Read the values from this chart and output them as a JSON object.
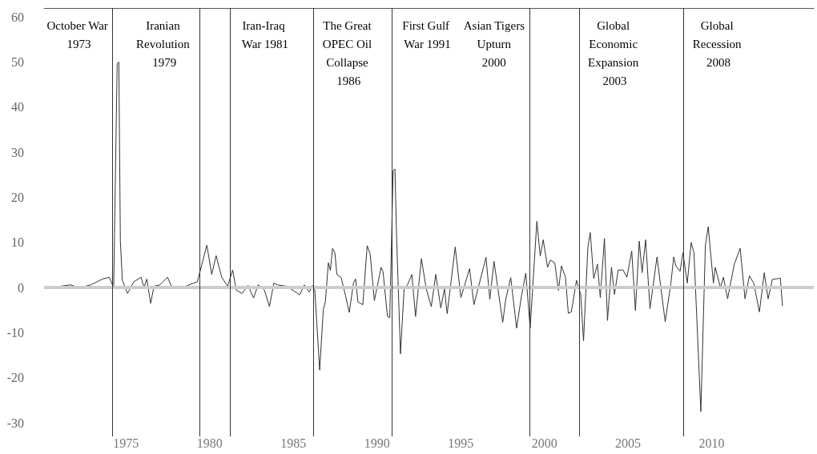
{
  "chart_data": {
    "type": "line",
    "x": [
      1970.46,
      1971.67,
      1972.2,
      1972.9,
      1973.6,
      1974.0,
      1974.26,
      1974.47,
      1974.57,
      1974.66,
      1974.78,
      1975.09,
      1975.47,
      1975.9,
      1976.07,
      1976.24,
      1976.47,
      1976.67,
      1977.02,
      1977.48,
      1977.71,
      1978.57,
      1979.26,
      1979.83,
      1980.12,
      1980.38,
      1980.72,
      1981.07,
      1981.37,
      1981.59,
      1981.94,
      1982.29,
      1982.62,
      1982.89,
      1983.14,
      1983.27,
      1983.57,
      1983.83,
      1984.05,
      1984.61,
      1985.38,
      1985.65,
      1985.95,
      1986.16,
      1986.28,
      1986.57,
      1986.79,
      1986.91,
      1987.09,
      1987.21,
      1987.34,
      1987.48,
      1987.6,
      1987.86,
      1988.12,
      1988.34,
      1988.59,
      1988.72,
      1988.86,
      1989.15,
      1989.41,
      1989.59,
      1989.84,
      1990.24,
      1990.36,
      1990.62,
      1990.76,
      1990.96,
      1991.07,
      1991.17,
      1991.4,
      1991.62,
      1991.82,
      1992.08,
      1992.3,
      1992.65,
      1992.94,
      1993.24,
      1993.51,
      1993.81,
      1994.03,
      1994.19,
      1994.67,
      1995.01,
      1995.53,
      1995.79,
      1996.51,
      1996.74,
      1996.99,
      1997.51,
      1997.69,
      1997.99,
      1998.34,
      1998.63,
      1998.89,
      1999.15,
      1999.55,
      1999.75,
      1999.93,
      2000.19,
      2000.36,
      2000.62,
      2000.84,
      2001.02,
      2001.26,
      2001.43,
      2001.61,
      2001.92,
      2002.17,
      2002.34,
      2002.6,
      2002.74,
      2002.95,
      2003.17,
      2003.34,
      2003.59,
      2003.77,
      2004.01,
      2004.19,
      2004.41,
      2004.7,
      2004.93,
      2005.22,
      2005.44,
      2005.67,
      2005.84,
      2006.05,
      2006.31,
      2006.73,
      2007.22,
      2007.56,
      2007.73,
      2007.86,
      2008.11,
      2008.28,
      2008.54,
      2008.77,
      2008.94,
      2009.35,
      2009.62,
      2009.79,
      2010.1,
      2010.21,
      2010.52,
      2010.7,
      2010.95,
      2011.13,
      2011.35,
      2011.7,
      2011.99,
      2012.25,
      2012.51,
      2012.85,
      2013.14,
      2013.37,
      2013.62,
      2013.97,
      2014.1,
      2014.23
    ],
    "series": [
      {
        "color": "#333333",
        "values": [
          0,
          0.6,
          0,
          0.6,
          1.9,
          2.3,
          0,
          49.7,
          50.0,
          10.3,
          1.6,
          -1.3,
          1.3,
          2.3,
          0,
          1.9,
          -3.5,
          0.3,
          0.6,
          2.3,
          0.3,
          0.3,
          1.3,
          9.4,
          2.9,
          7.1,
          2.3,
          0.3,
          3.9,
          -0.6,
          -1.3,
          0.5,
          -2.3,
          0.6,
          0,
          -0.6,
          -4.2,
          1.0,
          0.6,
          0.3,
          -1.6,
          0.6,
          -1.0,
          0.5,
          -0.6,
          -18.3,
          -4.8,
          -3.2,
          5.5,
          3.8,
          8.7,
          7.7,
          2.9,
          2.2,
          -1.9,
          -5.5,
          1.0,
          1.9,
          -3.2,
          -3.8,
          9.3,
          7.4,
          -2.9,
          4.5,
          3.5,
          -6.4,
          -6.7,
          25.9,
          26.3,
          10.9,
          -14.7,
          0,
          0.6,
          2.9,
          -6.4,
          6.4,
          -0.3,
          -4.2,
          2.9,
          -4.5,
          -0.3,
          -5.8,
          9.0,
          -2.2,
          4.2,
          -3.8,
          6.7,
          -2.6,
          5.8,
          -7.7,
          -2.6,
          2.2,
          -9.0,
          -1.9,
          3.2,
          -9.0,
          14.7,
          7.0,
          10.6,
          4.5,
          6.1,
          5.5,
          -0.6,
          4.8,
          2.3,
          -5.7,
          -5.4,
          1.6,
          -1.5,
          -11.8,
          9.0,
          12.2,
          2.0,
          5.2,
          -2.2,
          10.9,
          -7.3,
          4.5,
          -1.5,
          3.9,
          3.9,
          2.3,
          8.1,
          -5.1,
          10.3,
          3.3,
          10.6,
          -4.7,
          6.8,
          -7.6,
          1.0,
          6.8,
          4.8,
          3.6,
          7.7,
          1.0,
          10.0,
          7.7,
          -27.5,
          9.3,
          13.5,
          1.0,
          4.5,
          0,
          2.3,
          -2.5,
          1.0,
          5.2,
          8.7,
          -2.5,
          2.6,
          1.0,
          -5.4,
          3.3,
          -2.5,
          1.8,
          2.0,
          2.1,
          -4.1
        ]
      }
    ],
    "xlim": [
      1970.1,
      2016.1
    ],
    "xticks": [
      1975,
      1980,
      1985,
      1990,
      1995,
      2000,
      2005,
      2010
    ],
    "ylim": [
      -33,
      62
    ],
    "yticks": [
      -30,
      -20,
      -10,
      0,
      10,
      20,
      30,
      40,
      50,
      60
    ],
    "grid": false,
    "marker": "none",
    "line_style": "solid",
    "ref_lines": [
      {
        "axis": "y",
        "value": 0,
        "color": "#cccccc"
      },
      {
        "axis": "x",
        "value": 1974.2,
        "label": "October War 1973",
        "color": "#333333"
      },
      {
        "axis": "x",
        "value": 1979.4,
        "label": "Iranian Revolution 1979",
        "color": "#333333"
      },
      {
        "axis": "x",
        "value": 1981.2,
        "label": "Iran-Iraq War 1981",
        "color": "#333333"
      },
      {
        "axis": "x",
        "value": 1986.2,
        "label": "The Great OPEC Oil Collapse 1986",
        "color": "#333333"
      },
      {
        "axis": "x",
        "value": 1990.9,
        "label": "First Gulf War 1991",
        "color": "#333333"
      },
      {
        "axis": "x",
        "value": 1999.1,
        "label": "Asian Tigers Upturn 2000",
        "color": "#333333"
      },
      {
        "axis": "x",
        "value": 2002.1,
        "label": "Global Economic Expansion 2003",
        "color": "#333333"
      },
      {
        "axis": "x",
        "value": 2008.3,
        "label": "Global Recession 2008",
        "color": "#333333"
      }
    ]
  }
}
